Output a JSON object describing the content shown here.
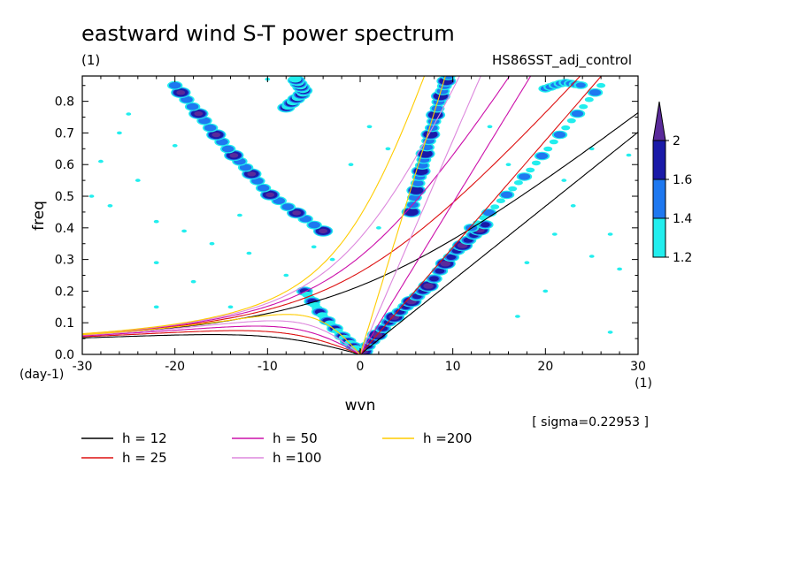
{
  "chart_data": {
    "type": "heatmap",
    "title": "eastward wind S-T power spectrum",
    "subtitle_left": "(1)",
    "subtitle_right": "HS86SST_adj_control",
    "xlabel": "wvn",
    "ylabel": "freq",
    "x_unit": "(1)",
    "y_unit": "(day-1)",
    "xlim": [
      -30,
      30
    ],
    "ylim": [
      0,
      0.88
    ],
    "x_ticks": [
      -30,
      -20,
      -10,
      0,
      10,
      20,
      30
    ],
    "x_tick_labels": [
      "-30",
      "-20",
      "-10",
      "0",
      "10",
      "20",
      "30"
    ],
    "y_ticks": [
      0,
      0.1,
      0.2,
      0.3,
      0.4,
      0.5,
      0.6,
      0.7,
      0.8
    ],
    "y_tick_labels": [
      "0.0",
      "0.1",
      "0.2",
      "0.3",
      "0.4",
      "0.5",
      "0.6",
      "0.7",
      "0.8"
    ],
    "colorbar": {
      "levels": [
        1.2,
        1.4,
        1.6,
        2
      ],
      "labels": [
        "1.2",
        "1.4",
        "1.6",
        "2"
      ],
      "colors": [
        "#22eeee",
        "#1e78f0",
        "#1a1aa8",
        "#5a2a9a"
      ]
    },
    "sigma_text": "[ sigma=0.22953 ]",
    "dispersion_curves": [
      {
        "label": "h = 12",
        "h": 12,
        "color": "#000000"
      },
      {
        "label": "h = 25",
        "h": 25,
        "color": "#dd1010"
      },
      {
        "label": "h = 50",
        "h": 50,
        "color": "#cc10aa"
      },
      {
        "label": "h =100",
        "h": 100,
        "color": "#dd88dd"
      },
      {
        "label": "h =200",
        "h": 200,
        "color": "#ffcc00"
      }
    ],
    "ridges": [
      {
        "name": "kelvin-ridge",
        "points": [
          [
            0.3,
            0.01
          ],
          [
            1.5,
            0.05
          ],
          [
            3,
            0.1
          ],
          [
            4.5,
            0.14
          ],
          [
            6,
            0.18
          ],
          [
            7.5,
            0.22
          ],
          [
            9,
            0.28
          ],
          [
            10.5,
            0.33
          ],
          [
            12,
            0.37
          ],
          [
            13.5,
            0.41
          ]
        ],
        "amp": 2.1
      },
      {
        "name": "kelvin-upper",
        "points": [
          [
            5.5,
            0.45
          ],
          [
            6.3,
            0.55
          ],
          [
            7,
            0.63
          ],
          [
            7.8,
            0.72
          ],
          [
            8.6,
            0.81
          ],
          [
            9.5,
            0.88
          ]
        ],
        "amp": 1.95
      },
      {
        "name": "westward-band",
        "points": [
          [
            -4,
            0.39
          ],
          [
            -7,
            0.45
          ],
          [
            -10,
            0.51
          ],
          [
            -12,
            0.58
          ],
          [
            -14,
            0.64
          ],
          [
            -16,
            0.71
          ],
          [
            -18,
            0.78
          ],
          [
            -20,
            0.85
          ]
        ],
        "amp": 2.0
      },
      {
        "name": "low-freq-tongue",
        "points": [
          [
            -6,
            0.2
          ],
          [
            -4,
            0.12
          ],
          [
            -2,
            0.06
          ],
          [
            -0.5,
            0.02
          ]
        ],
        "amp": 1.65
      },
      {
        "name": "right-band",
        "points": [
          [
            12,
            0.4
          ],
          [
            14,
            0.45
          ],
          [
            16,
            0.51
          ],
          [
            18,
            0.57
          ],
          [
            20,
            0.64
          ],
          [
            22,
            0.71
          ],
          [
            24,
            0.78
          ],
          [
            26,
            0.85
          ]
        ],
        "amp": 1.55
      },
      {
        "name": "upper-westward",
        "points": [
          [
            -8,
            0.78
          ],
          [
            -6,
            0.83
          ],
          [
            -7,
            0.87
          ]
        ],
        "amp": 1.75
      },
      {
        "name": "upper-right",
        "points": [
          [
            20,
            0.84
          ],
          [
            22,
            0.86
          ],
          [
            24,
            0.85
          ]
        ],
        "amp": 1.45
      }
    ],
    "scatter_points": [
      [
        -26,
        0.7
      ],
      [
        -28,
        0.61
      ],
      [
        -24,
        0.55
      ],
      [
        -27,
        0.47
      ],
      [
        -22,
        0.42
      ],
      [
        -19,
        0.39
      ],
      [
        -16,
        0.35
      ],
      [
        -13,
        0.44
      ],
      [
        -22,
        0.29
      ],
      [
        -25,
        0.76
      ],
      [
        -18,
        0.23
      ],
      [
        -8,
        0.25
      ],
      [
        -3,
        0.3
      ],
      [
        -14,
        0.15
      ],
      [
        -22,
        0.15
      ],
      [
        -12,
        0.32
      ],
      [
        -5,
        0.34
      ],
      [
        -29,
        0.5
      ],
      [
        18,
        0.29
      ],
      [
        25,
        0.31
      ],
      [
        27,
        0.38
      ],
      [
        23,
        0.47
      ],
      [
        16,
        0.6
      ],
      [
        20,
        0.2
      ],
      [
        27,
        0.07
      ],
      [
        22,
        0.55
      ],
      [
        28,
        0.27
      ],
      [
        14,
        0.72
      ],
      [
        25,
        0.65
      ],
      [
        17,
        0.12
      ],
      [
        21,
        0.38
      ],
      [
        29,
        0.63
      ],
      [
        -10,
        0.87
      ],
      [
        -20,
        0.66
      ],
      [
        3,
        0.65
      ],
      [
        1,
        0.72
      ],
      [
        -1,
        0.6
      ],
      [
        2,
        0.4
      ]
    ]
  }
}
